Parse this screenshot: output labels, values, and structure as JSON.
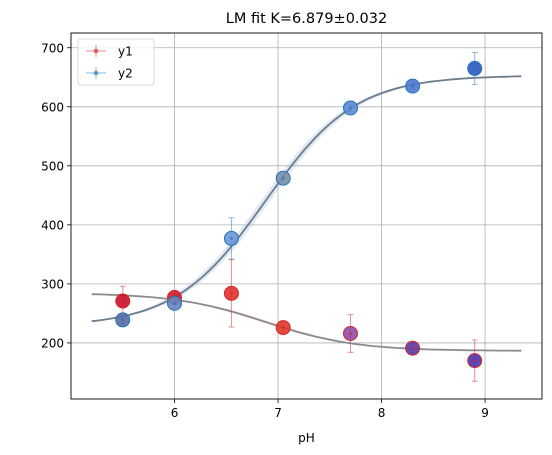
{
  "chart_data": {
    "type": "scatter",
    "title": "LM fit K=6.879±0.032",
    "xlabel": "pH",
    "ylabel": "",
    "xlim": [
      5.0,
      9.55
    ],
    "ylim": [
      105,
      725
    ],
    "xticks": [
      6,
      7,
      8,
      9
    ],
    "yticks": [
      200,
      300,
      400,
      500,
      600,
      700
    ],
    "grid": true,
    "legend_position": "upper-left",
    "x": [
      5.5,
      6.0,
      6.55,
      7.05,
      7.7,
      8.3,
      8.9
    ],
    "series": [
      {
        "name": "y1",
        "color": "#d62728",
        "values": [
          271,
          277,
          284,
          226,
          216,
          191,
          170
        ],
        "errors": [
          25,
          12,
          57,
          8,
          32,
          8,
          35
        ],
        "point_colors": [
          "#c8102e",
          "#d01c2c",
          "#e03030",
          "#dd3a2a",
          "#8e4ba8",
          "#5a3aa8",
          "#4a32b0"
        ],
        "fit": {
          "K": 6.879,
          "y_acid": 284.6,
          "y_base": 186.5
        },
        "fit_color": "#8a8a8f",
        "band_color": "#e89aa0"
      },
      {
        "name": "y2",
        "color": "#1f77b4",
        "values": [
          239,
          267,
          377,
          479,
          598,
          635,
          665
        ],
        "errors": [
          6,
          8,
          35,
          8,
          6,
          6,
          27
        ],
        "point_colors": [
          "#5a6aa8",
          "#6a85c0",
          "#6e96d8",
          "#7b90ac",
          "#5f8ad4",
          "#4f79cf",
          "#2f58c4"
        ],
        "fit": {
          "K": 6.879,
          "y_acid": 228.0,
          "y_base": 653.0
        },
        "fit_color": "#6e7c8c",
        "band_color": "#a8c4e0"
      }
    ]
  }
}
